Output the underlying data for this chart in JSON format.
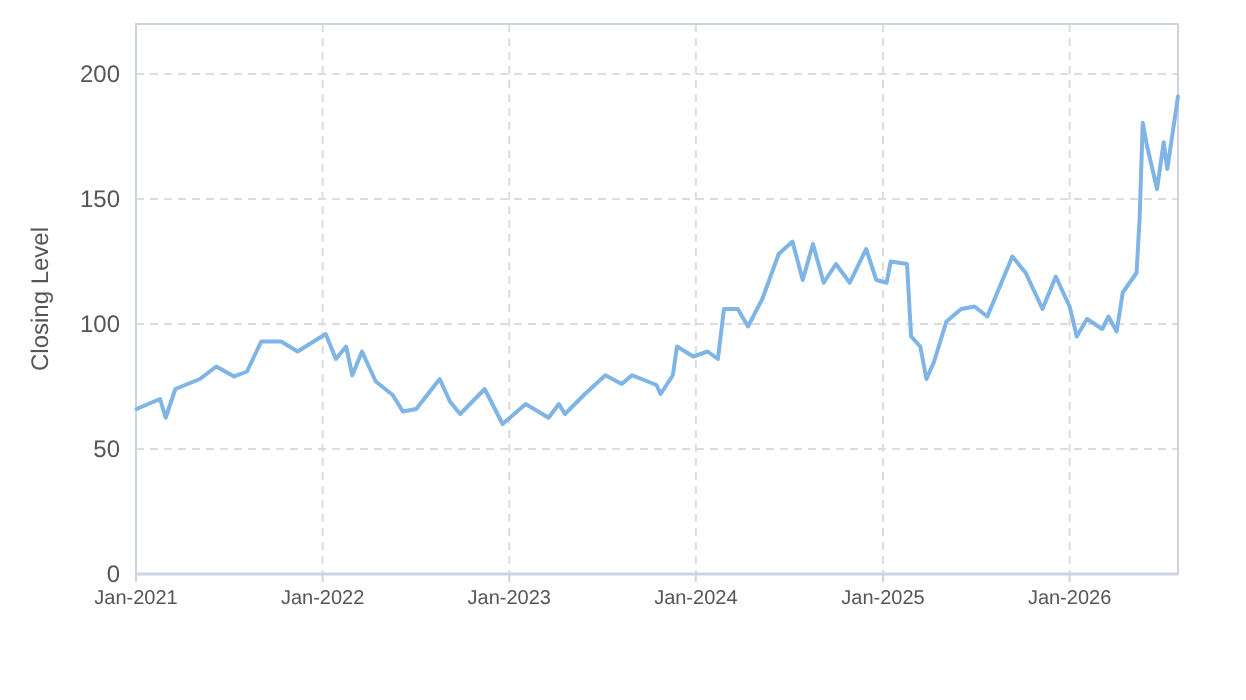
{
  "chart_data": {
    "type": "line",
    "ylabel": "Closing Level",
    "color": "#7eb4e6",
    "grid": true,
    "marker": "none",
    "line_style": "solid",
    "xlim": [
      "2021-01-01",
      "2026-08-01"
    ],
    "xticks": [
      {
        "value": "2021-01-01",
        "label": "Jan-2021"
      },
      {
        "value": "2022-01-01",
        "label": "Jan-2022"
      },
      {
        "value": "2023-01-01",
        "label": "Jan-2023"
      },
      {
        "value": "2024-01-01",
        "label": "Jan-2024"
      },
      {
        "value": "2025-01-01",
        "label": "Jan-2025"
      },
      {
        "value": "2026-01-01",
        "label": "Jan-2026"
      }
    ],
    "ylim": [
      0,
      220
    ],
    "yticks": [
      0,
      50,
      100,
      150,
      200
    ],
    "x": [
      "2021-01-02",
      "2021-02-17",
      "2021-02-28",
      "2021-03-19",
      "2021-05-06",
      "2021-06-07",
      "2021-07-12",
      "2021-08-06",
      "2021-09-03",
      "2021-10-12",
      "2021-11-13",
      "2022-01-07",
      "2022-01-27",
      "2022-02-16",
      "2022-02-28",
      "2022-03-19",
      "2022-04-15",
      "2022-05-18",
      "2022-06-07",
      "2022-07-03",
      "2022-08-18",
      "2022-09-07",
      "2022-09-27",
      "2022-11-14",
      "2022-12-19",
      "2023-02-02",
      "2023-03-19",
      "2023-04-08",
      "2023-04-20",
      "2023-05-29",
      "2023-07-08",
      "2023-08-09",
      "2023-08-29",
      "2023-10-16",
      "2023-10-24",
      "2023-11-17",
      "2023-11-25",
      "2023-12-27",
      "2024-01-24",
      "2024-02-13",
      "2024-02-25",
      "2024-03-23",
      "2024-04-12",
      "2024-05-10",
      "2024-06-11",
      "2024-07-08",
      "2024-07-28",
      "2024-08-17",
      "2024-09-07",
      "2024-10-01",
      "2024-10-28",
      "2024-11-29",
      "2024-12-19",
      "2025-01-08",
      "2025-01-16",
      "2025-02-17",
      "2025-02-25",
      "2025-03-15",
      "2025-03-27",
      "2025-04-11",
      "2025-05-05",
      "2025-06-03",
      "2025-06-29",
      "2025-07-24",
      "2025-09-11",
      "2025-10-07",
      "2025-11-09",
      "2025-12-05",
      "2026-01-01",
      "2026-01-15",
      "2026-02-04",
      "2026-03-06",
      "2026-03-18",
      "2026-04-03",
      "2026-04-15",
      "2026-05-12",
      "2026-05-18",
      "2026-05-24",
      "2026-06-01",
      "2026-06-21",
      "2026-07-04",
      "2026-07-11",
      "2026-08-01"
    ],
    "values": [
      66,
      70,
      62.5,
      74,
      78,
      83,
      79,
      81,
      93,
      93,
      89,
      96,
      86,
      91,
      79.5,
      89,
      77,
      71.6,
      65,
      66,
      78,
      69,
      64,
      74,
      60,
      68,
      62.5,
      68,
      64,
      72,
      79.5,
      76,
      79.5,
      75.6,
      72,
      79.5,
      91,
      87,
      89,
      86,
      106,
      106,
      99,
      110,
      128,
      133,
      117.6,
      132,
      116.5,
      124,
      116.5,
      130,
      117.6,
      116.5,
      125,
      124,
      95,
      91,
      78,
      85,
      101,
      106,
      107,
      103,
      127,
      120.5,
      106,
      119,
      107,
      95,
      102,
      98,
      103,
      97,
      112.6,
      120.5,
      142.5,
      180.5,
      171.6,
      154,
      172.7,
      162,
      191
    ]
  }
}
